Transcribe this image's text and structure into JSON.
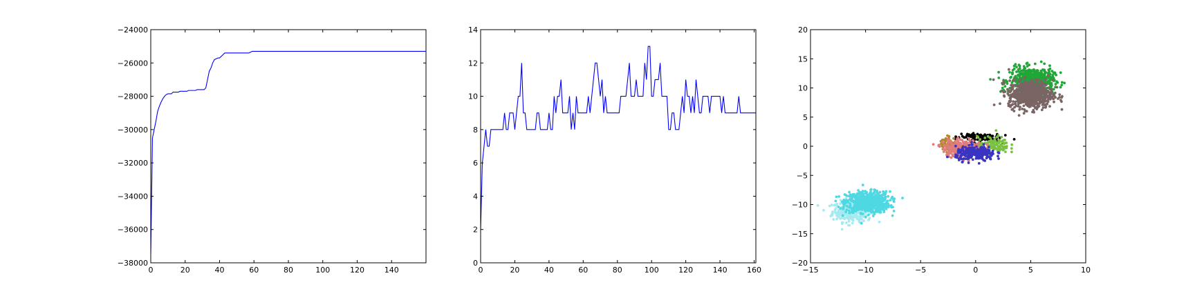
{
  "chart_data": [
    {
      "type": "line",
      "title": "",
      "xlabel": "",
      "ylabel": "",
      "xlim": [
        0,
        160
      ],
      "ylim": [
        -38000,
        -24000
      ],
      "xticks": [
        0,
        20,
        40,
        60,
        80,
        100,
        120,
        140
      ],
      "yticks": [
        -38000,
        -36000,
        -34000,
        -32000,
        -30000,
        -28000,
        -26000,
        -24000
      ],
      "color": "#0000ff",
      "series": [
        {
          "points": [
            [
              0,
              -37500
            ],
            [
              1,
              -30500
            ],
            [
              2,
              -30000
            ],
            [
              3,
              -29500
            ],
            [
              4,
              -28900
            ],
            [
              5,
              -28600
            ],
            [
              6,
              -28350
            ],
            [
              7,
              -28150
            ],
            [
              8,
              -28000
            ],
            [
              9,
              -27900
            ],
            [
              10,
              -27850
            ],
            [
              11,
              -27850
            ],
            [
              12,
              -27850
            ],
            [
              13,
              -27750
            ],
            [
              16,
              -27750
            ],
            [
              17,
              -27700
            ],
            [
              21,
              -27700
            ],
            [
              22,
              -27650
            ],
            [
              26,
              -27650
            ],
            [
              27,
              -27600
            ],
            [
              31,
              -27600
            ],
            [
              32,
              -27500
            ],
            [
              33,
              -27000
            ],
            [
              34,
              -26500
            ],
            [
              35,
              -26300
            ],
            [
              36,
              -26000
            ],
            [
              37,
              -25800
            ],
            [
              38,
              -25750
            ],
            [
              39,
              -25700
            ],
            [
              40,
              -25700
            ],
            [
              41,
              -25600
            ],
            [
              42,
              -25500
            ],
            [
              43,
              -25400
            ],
            [
              57,
              -25400
            ],
            [
              58,
              -25350
            ],
            [
              59,
              -25300
            ],
            [
              160,
              -25300
            ]
          ]
        }
      ]
    },
    {
      "type": "line",
      "title": "",
      "xlabel": "",
      "ylabel": "",
      "xlim": [
        0,
        161
      ],
      "ylim": [
        0,
        14
      ],
      "xticks": [
        0,
        20,
        40,
        60,
        80,
        100,
        120,
        140,
        160
      ],
      "yticks": [
        0,
        2,
        4,
        6,
        8,
        10,
        12,
        14
      ],
      "color": "#0000ff",
      "series": [
        {
          "y": [
            2,
            6,
            7,
            8,
            7,
            7,
            8,
            8,
            8,
            8,
            8,
            8,
            8,
            8,
            9,
            8,
            8,
            9,
            9,
            9,
            8,
            9,
            10,
            10,
            12,
            9,
            9,
            8,
            8,
            8,
            8,
            8,
            8,
            9,
            9,
            8,
            8,
            8,
            8,
            8,
            9,
            8,
            8,
            10,
            9,
            10,
            10,
            11,
            9,
            9,
            9,
            9,
            10,
            8,
            9,
            8,
            10,
            9,
            9,
            9,
            9,
            9,
            9,
            10,
            9,
            10,
            11,
            12,
            12,
            11,
            10,
            11,
            9,
            10,
            9,
            9,
            9,
            9,
            9,
            9,
            9,
            9,
            10,
            10,
            10,
            10,
            11,
            12,
            10,
            10,
            10,
            11,
            10,
            10,
            10,
            10,
            12,
            11,
            13,
            13,
            10,
            10,
            11,
            11,
            11,
            12,
            10,
            10,
            10,
            10,
            8,
            8,
            9,
            9,
            8,
            8,
            8,
            9,
            10,
            9,
            11,
            10,
            10,
            9,
            10,
            9,
            11,
            10,
            9,
            9,
            10,
            10,
            10,
            10,
            9,
            10,
            10,
            10,
            10,
            10,
            10,
            9,
            10,
            9,
            9,
            9,
            9,
            9,
            9,
            9,
            9,
            10,
            9,
            9,
            9,
            9,
            9,
            9,
            9,
            9,
            9,
            9
          ]
        }
      ]
    },
    {
      "type": "scatter",
      "title": "",
      "xlabel": "",
      "ylabel": "",
      "xlim": [
        -15,
        10
      ],
      "ylim": [
        -20,
        20
      ],
      "xticks": [
        -15,
        -10,
        -5,
        0,
        5,
        10
      ],
      "yticks": [
        -20,
        -15,
        -10,
        -5,
        0,
        5,
        10,
        15,
        20
      ],
      "clusters": [
        {
          "color": "#a4eaf0",
          "cx": -11.2,
          "cy": -11.2,
          "sx": 0.9,
          "sy": 0.9,
          "n": 300
        },
        {
          "color": "#4fd8e2",
          "cx": -9.8,
          "cy": -9.6,
          "sx": 1.0,
          "sy": 0.9,
          "n": 650
        },
        {
          "color": "#21a638",
          "cx": 5.1,
          "cy": 11.3,
          "sx": 1.0,
          "sy": 1.1,
          "n": 550
        },
        {
          "color": "#7a6464",
          "cx": 5.0,
          "cy": 8.9,
          "sx": 1.0,
          "sy": 1.2,
          "n": 650
        },
        {
          "color": "#000000",
          "cx": 0.2,
          "cy": 1.6,
          "sx": 1.0,
          "sy": 0.4,
          "n": 90
        },
        {
          "color": "#7ac143",
          "cx": 1.6,
          "cy": 0.2,
          "sx": 0.7,
          "sy": 0.7,
          "n": 120
        },
        {
          "color": "#b8862a",
          "cx": -2.5,
          "cy": 0.3,
          "sx": 0.35,
          "sy": 0.7,
          "n": 60
        },
        {
          "color": "#e07c7c",
          "cx": -1.2,
          "cy": -0.3,
          "sx": 0.9,
          "sy": 0.7,
          "n": 280
        },
        {
          "color": "#3a34c2",
          "cx": 0.0,
          "cy": -1.3,
          "sx": 0.9,
          "sy": 0.6,
          "n": 260
        }
      ]
    }
  ]
}
